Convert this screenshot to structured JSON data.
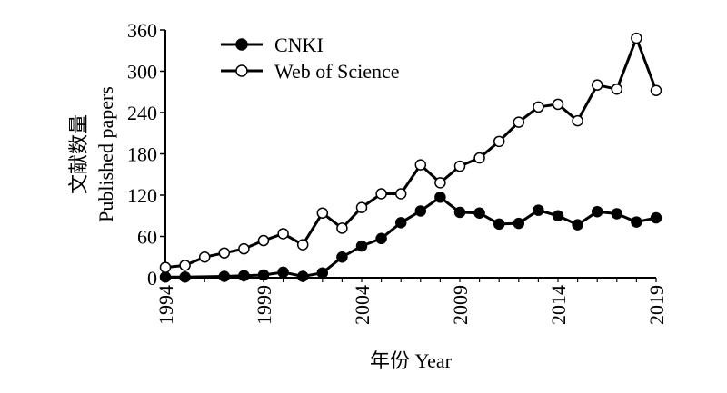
{
  "chart_data": {
    "type": "line",
    "xlabel": "年份 Year",
    "ylabel_lines": [
      "文献数量",
      "Published papers"
    ],
    "xlim": [
      1994,
      2019
    ],
    "ylim": [
      0,
      360
    ],
    "x_ticks": [
      1994,
      1999,
      2004,
      2009,
      2014,
      2019
    ],
    "y_ticks": [
      0,
      60,
      120,
      180,
      240,
      300,
      360
    ],
    "grid": false,
    "legend_position": "top-left",
    "x": [
      1994,
      1995,
      1996,
      1997,
      1998,
      1999,
      2000,
      2001,
      2002,
      2003,
      2004,
      2005,
      2006,
      2007,
      2008,
      2009,
      2010,
      2011,
      2012,
      2013,
      2014,
      2015,
      2016,
      2017,
      2018,
      2019
    ],
    "series": [
      {
        "name": "CNKI",
        "marker": "filled-circle",
        "color": "#000000",
        "values": [
          1,
          1,
          null,
          2,
          3,
          4,
          8,
          2,
          7,
          30,
          46,
          57,
          80,
          97,
          117,
          95,
          94,
          78,
          79,
          98,
          90,
          77,
          96,
          93,
          81,
          87
        ]
      },
      {
        "name": "Web of Science",
        "marker": "open-circle",
        "color": "#000000",
        "values": [
          15,
          18,
          30,
          36,
          42,
          54,
          64,
          48,
          94,
          72,
          102,
          122,
          122,
          164,
          138,
          162,
          174,
          198,
          226,
          248,
          252,
          228,
          280,
          274,
          348,
          272
        ]
      }
    ]
  }
}
